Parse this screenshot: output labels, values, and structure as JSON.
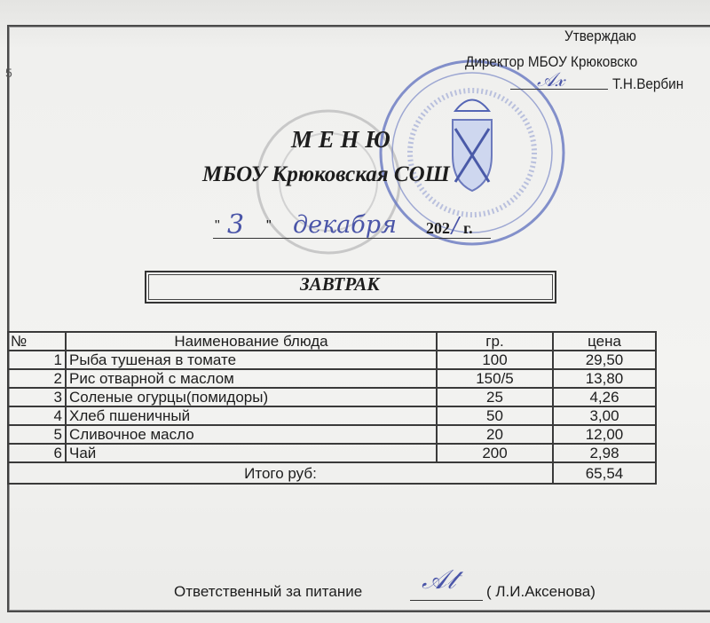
{
  "page_number": "5",
  "approval": {
    "approve": "Утверждаю",
    "position": "Директор МБОУ Крюковско",
    "name": "Т.Н.Вербин"
  },
  "header": {
    "title": "М Е Н Ю",
    "school": "МБОУ Крюковская СОШ",
    "date_open_quote": "\"",
    "date_day": "3",
    "date_close_quote": "\"",
    "date_month": "декабря",
    "date_year": "202",
    "date_suffix": "г."
  },
  "meal": "ЗАВТРАК",
  "table": {
    "headers": [
      "№",
      "Наименование блюда",
      "гр.",
      "цена"
    ],
    "rows": [
      {
        "num": "1",
        "name": "Рыба тушеная в томате",
        "grams": "100",
        "price": "29,50"
      },
      {
        "num": "2",
        "name": "Рис отварной с маслом",
        "grams": "150/5",
        "price": "13,80"
      },
      {
        "num": "3",
        "name": "Соленые огурцы(помидоры)",
        "grams": "25",
        "price": "4,26"
      },
      {
        "num": "4",
        "name": "Хлеб пшеничный",
        "grams": "50",
        "price": "3,00"
      },
      {
        "num": "5",
        "name": "Сливочное масло",
        "grams": "20",
        "price": "12,00"
      },
      {
        "num": "6",
        "name": "Чай",
        "grams": "200",
        "price": "2,98"
      }
    ],
    "total_label": "Итого руб:",
    "total_value": "65,54"
  },
  "footer": {
    "responsible_label": "Ответственный за питание",
    "responsible_name": "( Л.И.Аксенова)"
  },
  "colors": {
    "stamp": "#4a5fb0",
    "ink": "#4a55a8",
    "text": "#1d1d1d"
  }
}
